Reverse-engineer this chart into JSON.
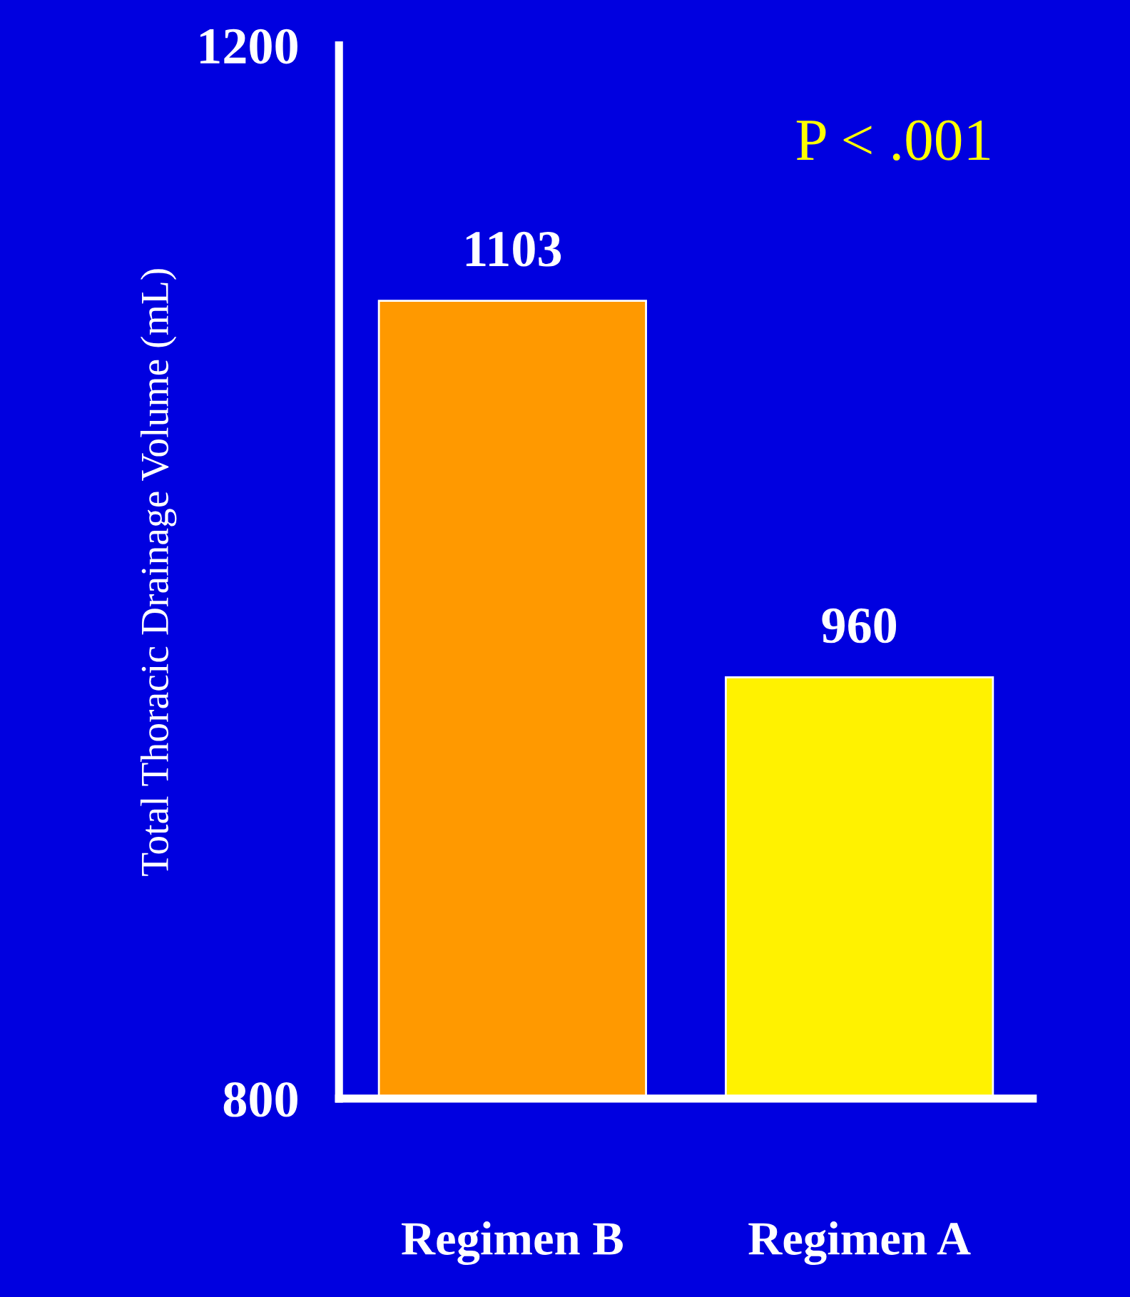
{
  "chart_data": {
    "type": "bar",
    "ylabel": "Total Thoracic Drainage Volume (mL)",
    "categories": [
      "Regimen B",
      "Regimen A"
    ],
    "values": [
      1103,
      960
    ],
    "colors": [
      "#ff9900",
      "#fff200"
    ],
    "ylim": [
      800,
      1200
    ],
    "yticks": [
      800,
      1200
    ],
    "data_labels": true,
    "grid": false,
    "legend": false,
    "annotations": [
      "P < .001"
    ]
  }
}
